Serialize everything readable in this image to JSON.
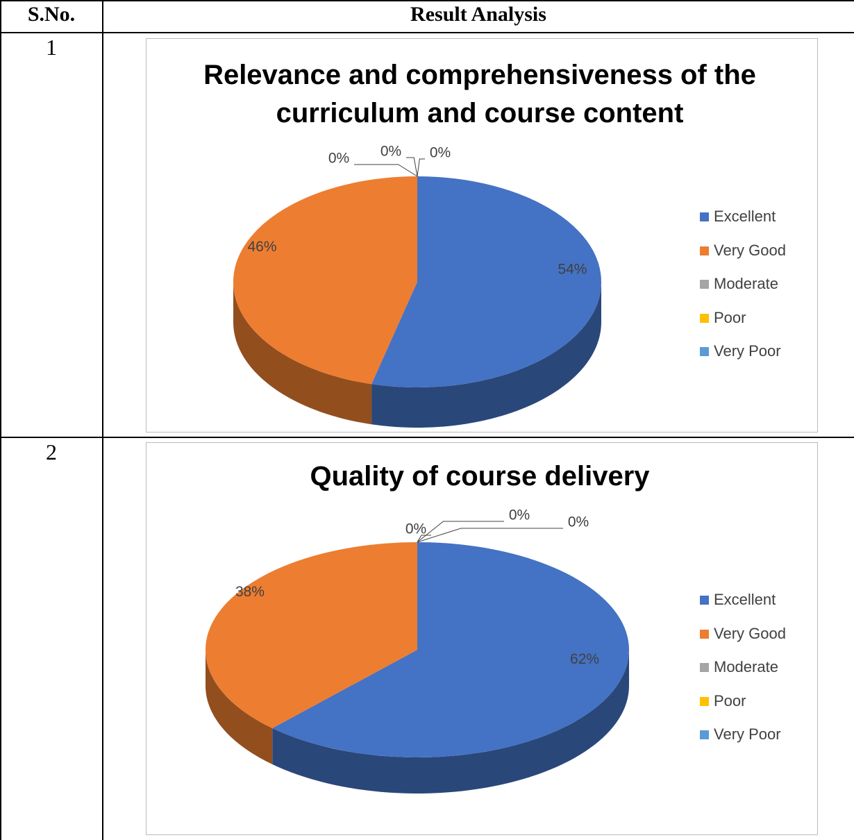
{
  "table": {
    "header": [
      "S.No.",
      "Result Analysis"
    ],
    "sno": [
      "1",
      "2"
    ]
  },
  "chart_data": [
    {
      "type": "pie",
      "title": "Relevance and comprehensiveness of the curriculum and course content",
      "categories": [
        "Excellent",
        "Very Good",
        "Moderate",
        "Poor",
        "Very Poor"
      ],
      "values": [
        54,
        46,
        0,
        0,
        0
      ],
      "value_labels": [
        "54%",
        "46%",
        "0%",
        "0%",
        "0%"
      ],
      "colors": [
        "#4472c4",
        "#ed7d31",
        "#a5a5a5",
        "#ffc000",
        "#5b9bd5"
      ],
      "legend": "right"
    },
    {
      "type": "pie",
      "title": "Quality of course delivery",
      "categories": [
        "Excellent",
        "Very Good",
        "Moderate",
        "Poor",
        "Very Poor"
      ],
      "values": [
        62,
        38,
        0,
        0,
        0
      ],
      "value_labels": [
        "62%",
        "38%",
        "0%",
        "0%",
        "0%"
      ],
      "colors": [
        "#4472c4",
        "#ed7d31",
        "#a5a5a5",
        "#ffc000",
        "#5b9bd5"
      ],
      "legend": "right"
    }
  ]
}
